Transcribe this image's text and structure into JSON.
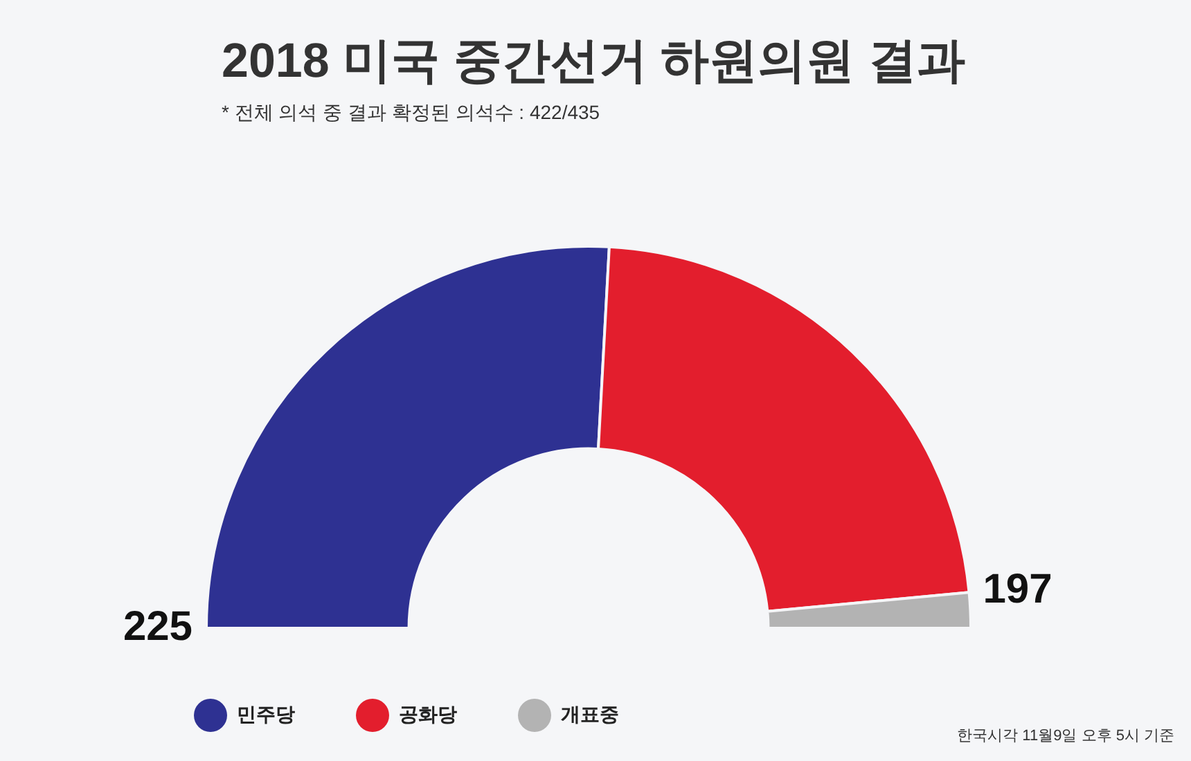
{
  "chart_data": {
    "type": "donut",
    "title": "2018 미국 중간선거 하원의원 결과",
    "subtitle": "* 전체 의석 중 결과 확정된 의석수 : 422/435",
    "categories": [
      "민주당",
      "공화당",
      "개표중"
    ],
    "values": [
      225,
      197,
      13
    ],
    "colors": [
      "#2e3192",
      "#e31e2d",
      "#b3b3b3"
    ],
    "value_labels": [
      "225",
      "197",
      null
    ],
    "legend": "bottom left",
    "annotations": [
      "한국시각 11월9일 오후 5시 기준"
    ]
  }
}
